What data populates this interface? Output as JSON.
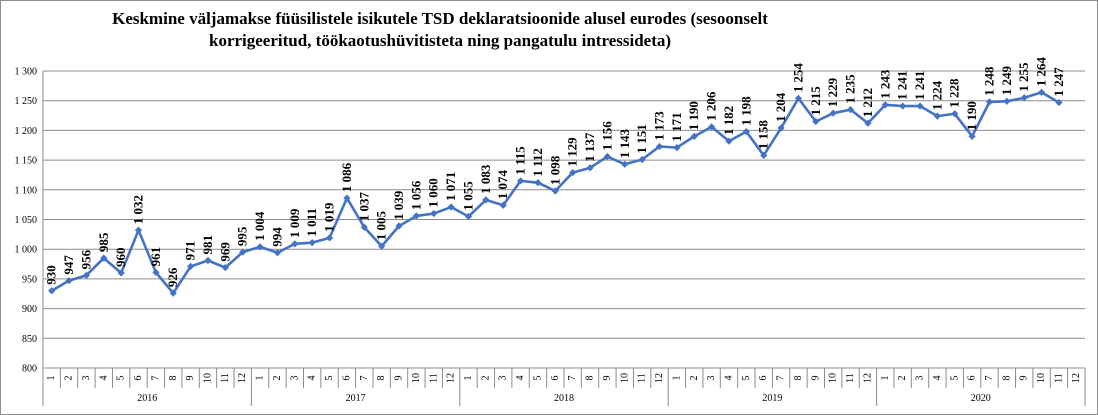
{
  "chart_data": {
    "type": "line",
    "title": "Keskmine väljamakse füüsilistele isikutele TSD deklaratsioonide alusel eurodes (sesoonselt korrigeeritud, töökaotushüvitisteta ning pangatulu intressideta)",
    "title_lines": [
      "Keskmine väljamakse füüsilistele isikutele TSD deklaratsioonide alusel eurodes (sesoonselt",
      "korrigeeritud, töökaotushüvitisteta ning pangatulu intressideta)"
    ],
    "xlabel": "",
    "ylabel": "",
    "ylim": [
      800,
      1300
    ],
    "y_ticks": [
      800,
      850,
      900,
      950,
      1000,
      1050,
      1100,
      1150,
      1200,
      1250,
      1300
    ],
    "y_tick_labels": [
      "800",
      "850",
      "900",
      "950",
      "1 000",
      "1 050",
      "1 100",
      "1 150",
      "1 200",
      "1 250",
      "1 300"
    ],
    "grid": true,
    "line_color": "#4472c4",
    "years": [
      "2016",
      "2017",
      "2018",
      "2019",
      "2020"
    ],
    "months": [
      "1",
      "2",
      "3",
      "4",
      "5",
      "6",
      "7",
      "8",
      "9",
      "10",
      "11",
      "12"
    ],
    "series": [
      {
        "values": [
          930,
          947,
          956,
          985,
          960,
          1032,
          961,
          926,
          971,
          981,
          969,
          995,
          1004,
          994,
          1009,
          1011,
          1019,
          1086,
          1037,
          1005,
          1039,
          1056,
          1060,
          1071,
          1055,
          1083,
          1074,
          1115,
          1112,
          1098,
          1129,
          1137,
          1156,
          1143,
          1151,
          1173,
          1171,
          1190,
          1206,
          1182,
          1198,
          1158,
          1204,
          1254,
          1215,
          1229,
          1235,
          1212,
          1243,
          1241,
          1241,
          1224,
          1228,
          1190,
          1248,
          1249,
          1255,
          1264,
          1247
        ],
        "labels": [
          "930",
          "947",
          "956",
          "985",
          "960",
          "1 032",
          "961",
          "926",
          "971",
          "981",
          "969",
          "995",
          "1 004",
          "994",
          "1 009",
          "1 011",
          "1 019",
          "1 086",
          "1 037",
          "1 005",
          "1 039",
          "1 056",
          "1 060",
          "1 071",
          "1 055",
          "1 083",
          "1 074",
          "1 115",
          "1 112",
          "1 098",
          "1 129",
          "1 137",
          "1 156",
          "1 143",
          "1 151",
          "1 173",
          "1 171",
          "1 190",
          "1 206",
          "1 182",
          "1 198",
          "1 158",
          "1 204",
          "1 254",
          "1 215",
          "1 229",
          "1 235",
          "1 212",
          "1 243",
          "1 241",
          "1 241",
          "1 224",
          "1 228",
          "1 190",
          "1 248",
          "1 249",
          "1 255",
          "1 264",
          "1 247"
        ]
      }
    ]
  }
}
